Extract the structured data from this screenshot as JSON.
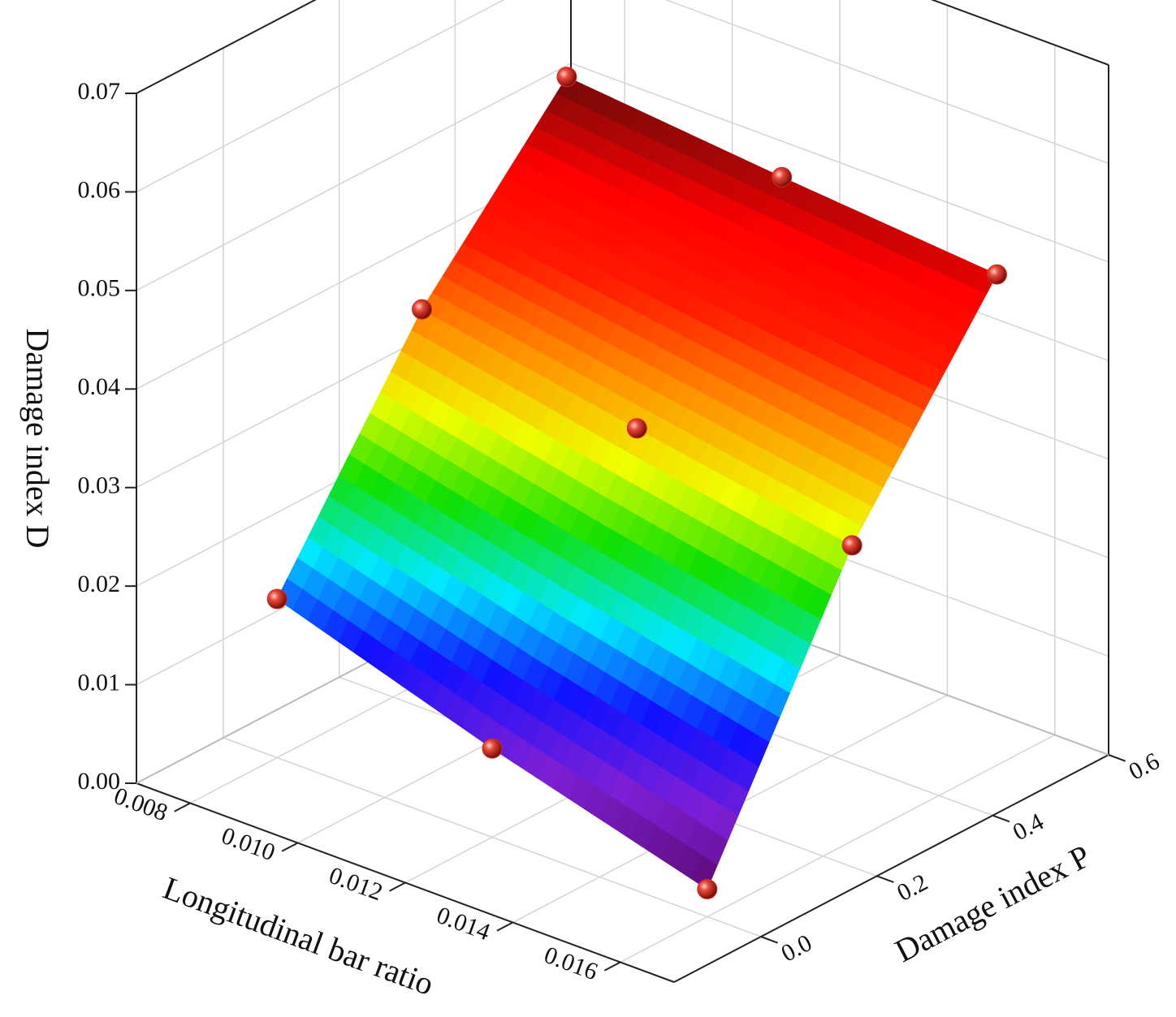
{
  "chart_data": {
    "type": "surface3d",
    "x_label": "Longitudinal bar ratio",
    "y_label": "Damage index P",
    "z_label": "Damage index D",
    "x": [
      0.008,
      0.008,
      0.008,
      0.012,
      0.012,
      0.012,
      0.016,
      0.016,
      0.016
    ],
    "y": [
      0,
      0.25,
      0.5,
      0,
      0.25,
      0.5,
      0,
      0.25,
      0.5
    ],
    "z": [
      0.0161,
      0.0378,
      0.0537,
      0.009,
      0.0338,
      0.0516,
      0.0028,
      0.03,
      0.0498
    ],
    "xlim": [
      0.007,
      0.017
    ],
    "ylim": [
      -0.15,
      0.6
    ],
    "zlim": [
      0,
      0.07
    ],
    "xticks": [
      0.008,
      {
        "value": 0.01,
        "label": "0.010"
      },
      0.012,
      0.014,
      0.016
    ],
    "yticks": [
      {
        "value": 0,
        "label": "0.0"
      },
      0.2,
      0.4,
      0.6
    ],
    "zticks": [
      {
        "value": 0,
        "label": "0.00"
      },
      0.01,
      0.02,
      0.03,
      0.04,
      0.05,
      0.06,
      0.07
    ],
    "grid": true,
    "marker_color": "#d92b20",
    "colormap": [
      "#5c0a72",
      "#7d1fd6",
      "#1010ff",
      "#00e8ff",
      "#10e000",
      "#f0ff00",
      "#ff9000",
      "#ff1a00",
      "#ff0000",
      "#6e0a0a"
    ]
  }
}
